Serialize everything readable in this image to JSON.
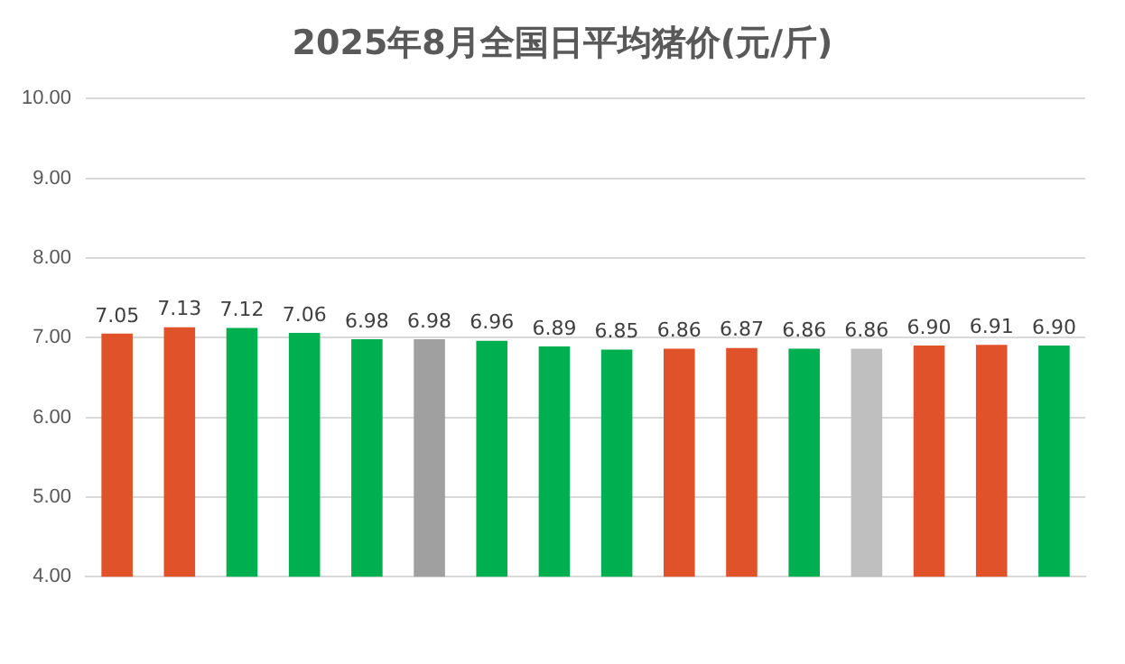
{
  "chart_data": {
    "type": "bar",
    "title": "2025年8月全国日平均猪价(元/斤)",
    "categories": [
      null,
      null,
      null,
      null,
      null,
      null,
      null,
      null,
      null,
      null,
      null,
      null,
      null,
      null,
      null,
      null
    ],
    "values": [
      7.05,
      7.13,
      7.12,
      7.06,
      6.98,
      6.98,
      6.96,
      6.89,
      6.85,
      6.86,
      6.87,
      6.86,
      6.86,
      6.9,
      6.91,
      6.9
    ],
    "value_labels": [
      "7.05",
      "7.13",
      "7.12",
      "7.06",
      "6.98",
      "6.98",
      "6.96",
      "6.89",
      "6.85",
      "6.86",
      "6.87",
      "6.86",
      "6.86",
      "6.90",
      "6.91",
      "6.90"
    ],
    "colors": [
      "#e0532a",
      "#e0532a",
      "#00b050",
      "#00b050",
      "#00b050",
      "#a0a0a0",
      "#00b050",
      "#00b050",
      "#00b050",
      "#e0532a",
      "#e0532a",
      "#00b050",
      "#bfbfbf",
      "#e0532a",
      "#e0532a",
      "#00b050"
    ],
    "ylim": [
      4,
      10
    ],
    "yticks": [
      {
        "value": 4,
        "label": "4.00"
      },
      {
        "value": 5,
        "label": "5.00"
      },
      {
        "value": 6,
        "label": "6.00"
      },
      {
        "value": 7,
        "label": "7.00"
      },
      {
        "value": 8,
        "label": "8.00"
      },
      {
        "value": 9,
        "label": "9.00"
      },
      {
        "value": 10,
        "label": "10.00"
      }
    ],
    "grid": "y"
  }
}
